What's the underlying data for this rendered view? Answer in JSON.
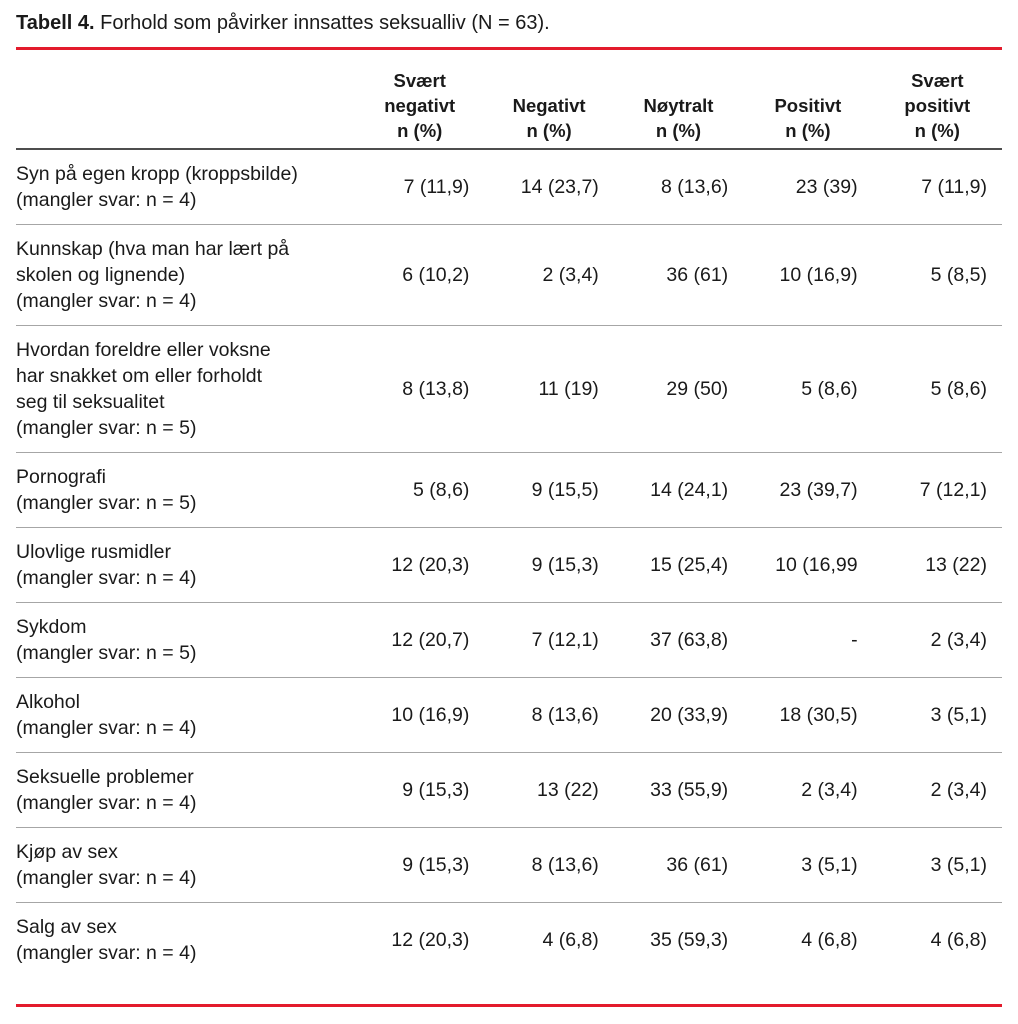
{
  "title": {
    "label": "Tabell 4.",
    "text": " Forhold som påvirker innsattes seksualliv (N = 63)."
  },
  "colors": {
    "accent_red": "#e31b2c",
    "header_rule": "#4d4d4d",
    "row_rule": "#a6a6a6",
    "text": "#1a1a1a"
  },
  "table": {
    "columns": [
      {
        "lines": [
          "Svært",
          "negativt",
          "n (%)"
        ]
      },
      {
        "lines": [
          "Negativt",
          "n (%)"
        ]
      },
      {
        "lines": [
          "Nøytralt",
          "n (%)"
        ]
      },
      {
        "lines": [
          "Positivt",
          "n (%)"
        ]
      },
      {
        "lines": [
          "Svært",
          "positivt",
          "n (%)"
        ]
      }
    ],
    "rows": [
      {
        "label_lines": [
          "Syn på egen kropp (kroppsbilde)",
          "(mangler svar: n = 4)"
        ],
        "values": [
          "7 (11,9)",
          "14 (23,7)",
          "8 (13,6)",
          "23 (39)",
          "7 (11,9)"
        ]
      },
      {
        "label_lines": [
          "Kunnskap (hva man har lært på",
          "skolen og lignende)",
          "(mangler svar: n = 4)"
        ],
        "values": [
          "6 (10,2)",
          "2 (3,4)",
          "36 (61)",
          "10 (16,9)",
          "5 (8,5)"
        ]
      },
      {
        "label_lines": [
          "Hvordan foreldre eller voksne",
          "har snakket om eller forholdt",
          "seg til seksualitet",
          "(mangler svar: n = 5)"
        ],
        "values": [
          "8 (13,8)",
          "11 (19)",
          "29 (50)",
          "5 (8,6)",
          "5 (8,6)"
        ]
      },
      {
        "label_lines": [
          "Pornografi",
          "(mangler svar: n = 5)"
        ],
        "values": [
          "5 (8,6)",
          "9 (15,5)",
          "14 (24,1)",
          "23 (39,7)",
          "7 (12,1)"
        ]
      },
      {
        "label_lines": [
          "Ulovlige rusmidler",
          "(mangler svar: n = 4)"
        ],
        "values": [
          "12 (20,3)",
          "9 (15,3)",
          "15 (25,4)",
          "10 (16,99",
          "13 (22)"
        ]
      },
      {
        "label_lines": [
          "Sykdom",
          "(mangler svar: n = 5)"
        ],
        "values": [
          "12 (20,7)",
          "7 (12,1)",
          "37 (63,8)",
          "-",
          "2 (3,4)"
        ]
      },
      {
        "label_lines": [
          "Alkohol",
          "(mangler svar: n = 4)"
        ],
        "values": [
          "10 (16,9)",
          "8 (13,6)",
          "20 (33,9)",
          "18 (30,5)",
          "3 (5,1)"
        ]
      },
      {
        "label_lines": [
          "Seksuelle problemer",
          "(mangler svar: n = 4)"
        ],
        "values": [
          "9 (15,3)",
          "13 (22)",
          "33 (55,9)",
          "2 (3,4)",
          "2 (3,4)"
        ]
      },
      {
        "label_lines": [
          "Kjøp av sex",
          "(mangler svar: n = 4)"
        ],
        "values": [
          "9 (15,3)",
          "8 (13,6)",
          "36 (61)",
          "3 (5,1)",
          "3 (5,1)"
        ]
      },
      {
        "label_lines": [
          "Salg av sex",
          "(mangler svar: n = 4)"
        ],
        "values": [
          "12 (20,3)",
          "4 (6,8)",
          "35 (59,3)",
          "4 (6,8)",
          "4 (6,8)"
        ]
      }
    ]
  }
}
